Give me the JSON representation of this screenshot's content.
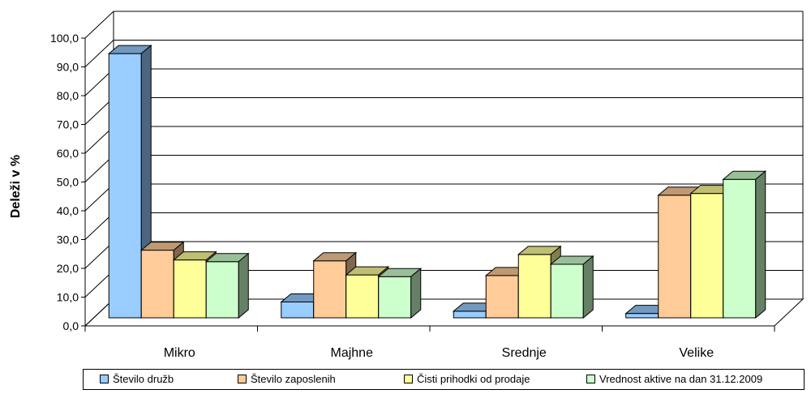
{
  "chart_data": {
    "type": "bar",
    "ylabel": "Deleži v %",
    "xlabel": "",
    "ylim": [
      0,
      100
    ],
    "yticks": [
      "0,0",
      "10,0",
      "20,0",
      "30,0",
      "40,0",
      "50,0",
      "60,0",
      "70,0",
      "80,0",
      "90,0",
      "100,0"
    ],
    "categories": [
      "Mikro",
      "Majhne",
      "Srednje",
      "Velike"
    ],
    "grid": true,
    "legend_position": "bottom",
    "three_d": true,
    "series": [
      {
        "name": "Število družb",
        "values": [
          91.8,
          5.5,
          2.3,
          1.5
        ],
        "color": "#99ccff"
      },
      {
        "name": "Število zaposlenih",
        "values": [
          23.5,
          19.8,
          14.7,
          42.6
        ],
        "color": "#ffcc99"
      },
      {
        "name": "Čisti prihodki od prodaje",
        "values": [
          20.1,
          14.9,
          22.0,
          43.2
        ],
        "color": "#ffff99"
      },
      {
        "name": "Vrednost aktive na dan 31.12.2009",
        "values": [
          19.5,
          14.3,
          18.6,
          48.1
        ],
        "color": "#ccffcc"
      }
    ]
  }
}
